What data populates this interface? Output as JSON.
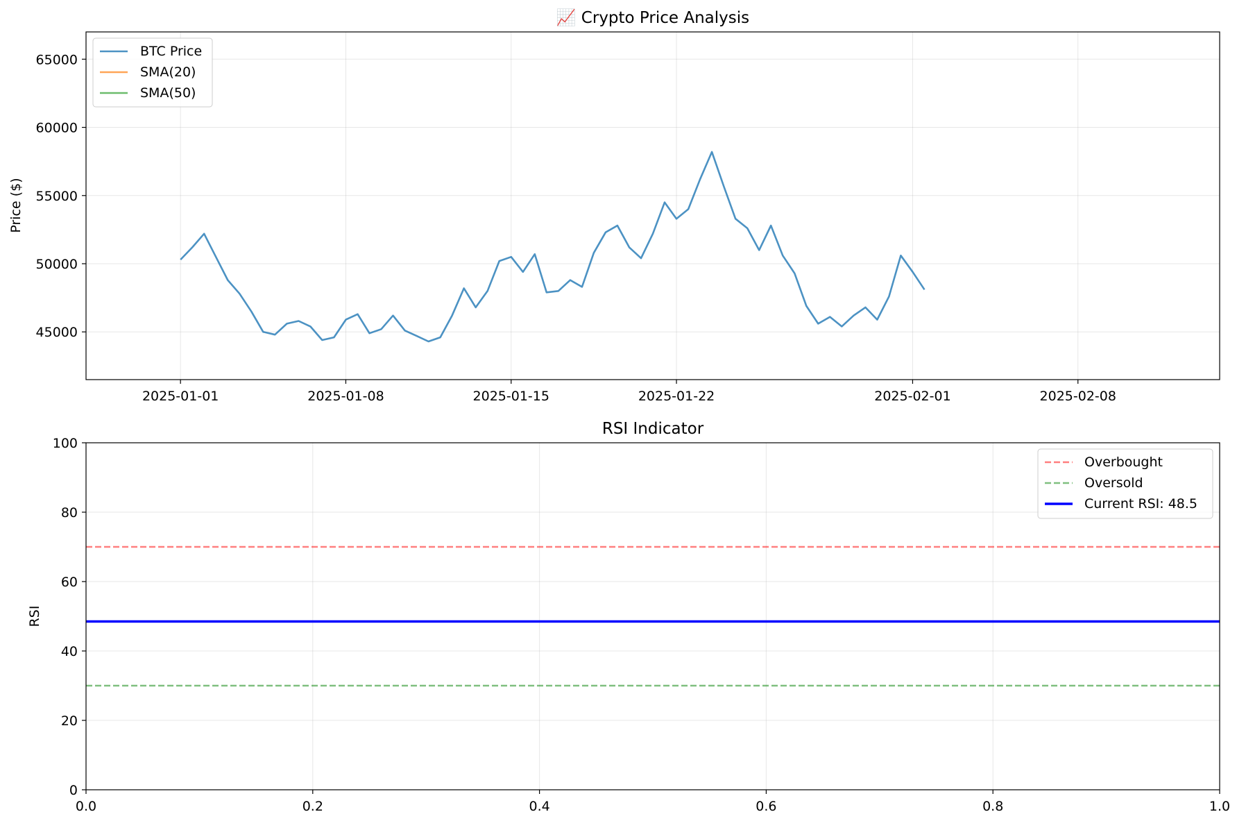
{
  "chart_data": [
    {
      "type": "line",
      "title": "📈 Crypto Price Analysis",
      "xlabel": "",
      "ylabel": "Price ($)",
      "x_axis": "date",
      "x_range": [
        "2024-12-28",
        "2025-02-14"
      ],
      "ylim": [
        41500,
        67000
      ],
      "x_ticks": [
        "2025-01-01",
        "2025-01-08",
        "2025-01-15",
        "2025-01-22",
        "2025-02-01",
        "2025-02-08"
      ],
      "y_ticks": [
        45000,
        50000,
        55000,
        60000,
        65000
      ],
      "grid": true,
      "legend_position": "top-left",
      "series": [
        {
          "name": "BTC Price",
          "color": "#1f77b4",
          "points": [
            [
              "2025-01-01",
              50300
            ],
            [
              "2025-01-01T12:00",
              51200
            ],
            [
              "2025-01-02",
              52200
            ],
            [
              "2025-01-02T12:00",
              50500
            ],
            [
              "2025-01-03",
              48800
            ],
            [
              "2025-01-03T12:00",
              47800
            ],
            [
              "2025-01-04",
              46500
            ],
            [
              "2025-01-04T12:00",
              45000
            ],
            [
              "2025-01-05",
              44800
            ],
            [
              "2025-01-05T12:00",
              45600
            ],
            [
              "2025-01-06",
              45800
            ],
            [
              "2025-01-06T12:00",
              45400
            ],
            [
              "2025-01-07",
              44400
            ],
            [
              "2025-01-07T12:00",
              44600
            ],
            [
              "2025-01-08",
              45900
            ],
            [
              "2025-01-08T12:00",
              46300
            ],
            [
              "2025-01-09",
              44900
            ],
            [
              "2025-01-09T12:00",
              45200
            ],
            [
              "2025-01-10",
              46200
            ],
            [
              "2025-01-10T12:00",
              45100
            ],
            [
              "2025-01-11",
              44700
            ],
            [
              "2025-01-11T12:00",
              44300
            ],
            [
              "2025-01-12",
              44600
            ],
            [
              "2025-01-12T12:00",
              46200
            ],
            [
              "2025-01-13",
              48200
            ],
            [
              "2025-01-13T12:00",
              46800
            ],
            [
              "2025-01-14",
              48000
            ],
            [
              "2025-01-14T12:00",
              50200
            ],
            [
              "2025-01-15",
              50500
            ],
            [
              "2025-01-15T12:00",
              49400
            ],
            [
              "2025-01-16",
              50700
            ],
            [
              "2025-01-16T12:00",
              47900
            ],
            [
              "2025-01-17",
              48000
            ],
            [
              "2025-01-17T12:00",
              48800
            ],
            [
              "2025-01-18",
              48300
            ],
            [
              "2025-01-18T12:00",
              50800
            ],
            [
              "2025-01-19",
              52300
            ],
            [
              "2025-01-19T12:00",
              52800
            ],
            [
              "2025-01-20",
              51200
            ],
            [
              "2025-01-20T12:00",
              50400
            ],
            [
              "2025-01-21",
              52200
            ],
            [
              "2025-01-21T12:00",
              54500
            ],
            [
              "2025-01-22",
              53300
            ],
            [
              "2025-01-22T12:00",
              54000
            ],
            [
              "2025-01-23",
              56200
            ],
            [
              "2025-01-23T12:00",
              58200
            ],
            [
              "2025-01-24",
              55700
            ],
            [
              "2025-01-24T12:00",
              53300
            ],
            [
              "2025-01-25",
              52600
            ],
            [
              "2025-01-25T12:00",
              51000
            ],
            [
              "2025-01-26",
              52800
            ],
            [
              "2025-01-26T12:00",
              50600
            ],
            [
              "2025-01-27",
              49300
            ],
            [
              "2025-01-27T12:00",
              46900
            ],
            [
              "2025-01-28",
              45600
            ],
            [
              "2025-01-28T12:00",
              46100
            ],
            [
              "2025-01-29",
              45400
            ],
            [
              "2025-01-29T12:00",
              46200
            ],
            [
              "2025-01-30",
              46800
            ],
            [
              "2025-01-30T12:00",
              45900
            ],
            [
              "2025-01-31",
              47600
            ],
            [
              "2025-01-31T12:00",
              50600
            ],
            [
              "2025-02-01",
              49400
            ],
            [
              "2025-02-01T12:00",
              48100
            ]
          ]
        },
        {
          "name": "SMA(20)",
          "color": "#ff7f0e",
          "points": []
        },
        {
          "name": "SMA(50)",
          "color": "#2ca02c",
          "points": []
        }
      ]
    },
    {
      "type": "line",
      "title": "RSI Indicator",
      "xlabel": "",
      "ylabel": "RSI",
      "xlim": [
        0.0,
        1.0
      ],
      "ylim": [
        0,
        100
      ],
      "x_ticks": [
        "0.0",
        "0.2",
        "0.4",
        "0.6",
        "0.8",
        "1.0"
      ],
      "y_ticks": [
        "0",
        "20",
        "40",
        "60",
        "80",
        "100"
      ],
      "grid": true,
      "legend_position": "top-right",
      "series": [
        {
          "name": "Overbought",
          "color": "#ff0000",
          "style": "dashed",
          "value": 70
        },
        {
          "name": "Oversold",
          "color": "#008000",
          "style": "dashed",
          "value": 30
        },
        {
          "name": "Current RSI: 48.5",
          "color": "#0000ff",
          "style": "solid",
          "value": 48.5
        }
      ]
    }
  ]
}
